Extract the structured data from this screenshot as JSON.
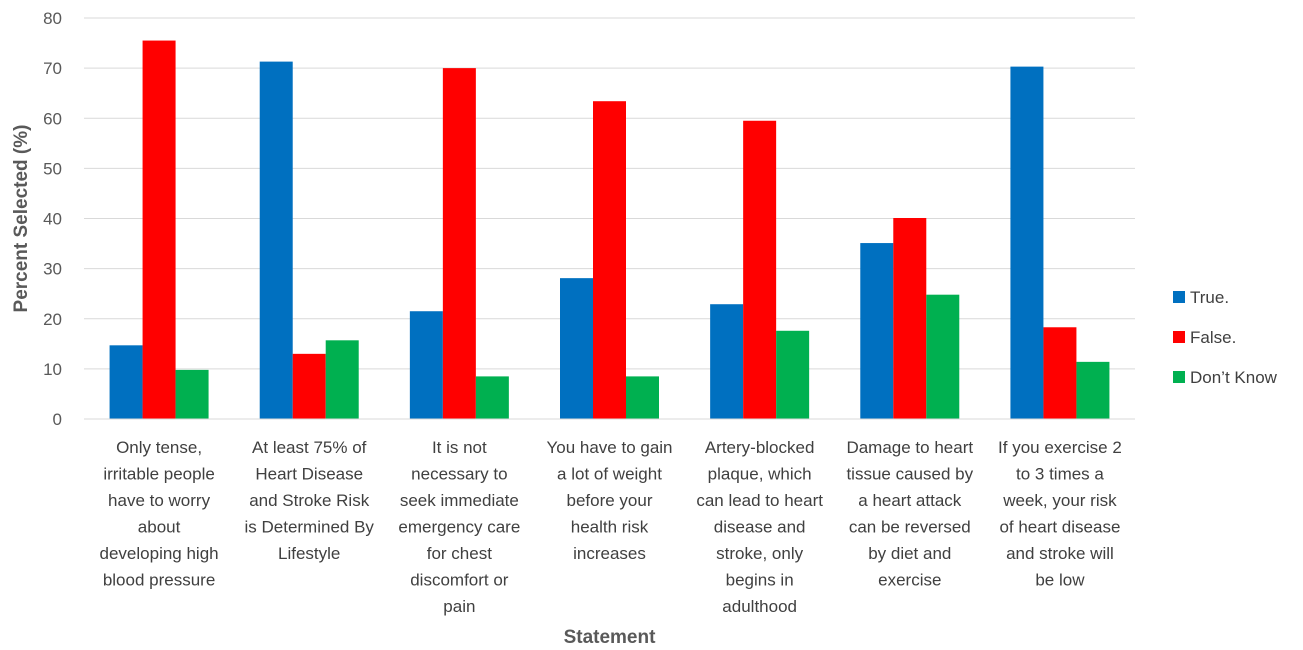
{
  "chart_data": {
    "type": "bar",
    "title": "",
    "xlabel": "Statement",
    "ylabel": "Percent Selected (%)",
    "ylim": [
      0,
      80
    ],
    "yticks": [
      0,
      10,
      20,
      30,
      40,
      50,
      60,
      70,
      80
    ],
    "grid": true,
    "legend_position": "right",
    "categories": [
      "Only tense, irritable people have to worry about developing high blood pressure",
      "At least 75% of Heart Disease and Stroke Risk is Determined By Lifestyle",
      "It is not necessary to seek immediate emergency care for chest discomfort or pain",
      "You have to gain a lot of weight before your health risk increases",
      "Artery-blocked plaque, which can lead to heart disease and stroke, only begins in adulthood",
      "Damage to heart tissue caused by a heart attack can be reversed by diet and exercise",
      "If you exercise 2 to 3 times a week, your risk of heart disease and stroke will be low"
    ],
    "category_lines": [
      [
        "Only tense,",
        "irritable people",
        "have to worry",
        "about",
        "developing high",
        "blood pressure"
      ],
      [
        "At least 75% of",
        "Heart Disease",
        "and Stroke Risk",
        "is Determined By",
        "Lifestyle"
      ],
      [
        "It is not",
        "necessary to",
        "seek immediate",
        "emergency care",
        "for chest",
        "discomfort or",
        "pain"
      ],
      [
        "You have to gain",
        "a lot of weight",
        "before your",
        "health risk",
        "increases"
      ],
      [
        "Artery-blocked",
        "plaque, which",
        "can lead to heart",
        "disease and",
        "stroke, only",
        "begins in",
        "adulthood"
      ],
      [
        "Damage to heart",
        "tissue caused by",
        "a heart attack",
        "can be reversed",
        "by diet and",
        "exercise"
      ],
      [
        "If you exercise 2",
        "to 3 times a",
        "week, your risk",
        "of heart disease",
        "and stroke will",
        "be low"
      ]
    ],
    "series": [
      {
        "name": "True.",
        "color": "#0070C0",
        "values": [
          14.7,
          71.3,
          21.5,
          28.1,
          22.9,
          35.1,
          70.3
        ]
      },
      {
        "name": "False.",
        "color": "#FF0000",
        "values": [
          75.5,
          13.0,
          70.0,
          63.4,
          59.5,
          40.1,
          18.3
        ]
      },
      {
        "name": "Don’t Know",
        "color": "#00B050",
        "values": [
          9.8,
          15.7,
          8.5,
          8.5,
          17.6,
          24.8,
          11.4
        ]
      }
    ]
  }
}
